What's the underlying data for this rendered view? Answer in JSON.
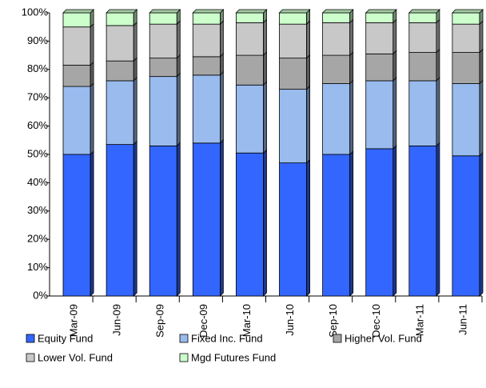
{
  "chart_data": {
    "type": "stacked-bar-100",
    "categories": [
      "Mar-09",
      "Jun-09",
      "Sep-09",
      "Dec-09",
      "Mar-10",
      "Jun-10",
      "Sep-10",
      "Dec-10",
      "Mar-11",
      "Jun-11"
    ],
    "series": [
      {
        "name": "Equity Fund",
        "color": "#3366ff",
        "values": [
          50,
          53.5,
          53,
          54,
          50.5,
          47,
          50,
          52,
          53,
          49.5
        ]
      },
      {
        "name": "Fixed Inc. Fund",
        "color": "#99bbee",
        "values": [
          24,
          22.5,
          24.5,
          24,
          24,
          26,
          25,
          24,
          23,
          25.5
        ]
      },
      {
        "name": "Higher Vol. Fund",
        "color": "#a6a6a6",
        "values": [
          7.5,
          7,
          6.5,
          6.5,
          10.5,
          11,
          10,
          9.5,
          10,
          11
        ]
      },
      {
        "name": "Lower Vol. Fund",
        "color": "#c8c8c8",
        "values": [
          13.5,
          12.5,
          12,
          11.5,
          11.5,
          12,
          11.5,
          11,
          10.5,
          10
        ]
      },
      {
        "name": "Mgd Futures Fund",
        "color": "#ccffcc",
        "values": [
          5,
          4.5,
          4,
          4,
          3.5,
          4,
          3.5,
          3.5,
          3.5,
          4
        ]
      }
    ],
    "ylim": [
      0,
      100
    ],
    "yticks": [
      {
        "value": 0,
        "label": "0%"
      },
      {
        "value": 10,
        "label": "10%"
      },
      {
        "value": 20,
        "label": "20%"
      },
      {
        "value": 30,
        "label": "30%"
      },
      {
        "value": 40,
        "label": "40%"
      },
      {
        "value": 50,
        "label": "50%"
      },
      {
        "value": 60,
        "label": "60%"
      },
      {
        "value": 70,
        "label": "70%"
      },
      {
        "value": 80,
        "label": "80%"
      },
      {
        "value": 90,
        "label": "90%"
      },
      {
        "value": 100,
        "label": "100%"
      }
    ]
  }
}
